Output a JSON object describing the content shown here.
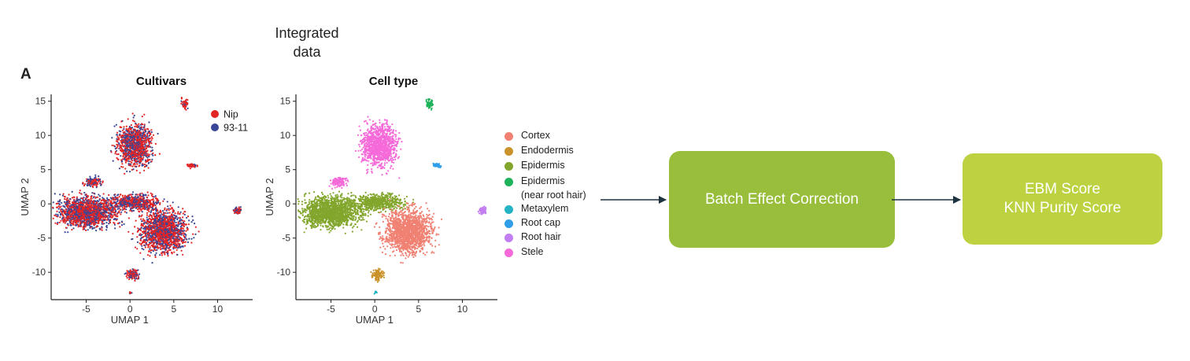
{
  "header": {
    "top_label_line1": "Integrated",
    "top_label_line2": "data",
    "panel_letter": "A"
  },
  "colors": {
    "box1": "#98be3b",
    "box2": "#bed140",
    "arrow": "#1d3340"
  },
  "chart_data": [
    {
      "type": "scatter",
      "title": "Cultivars",
      "xlabel": "UMAP 1",
      "ylabel": "UMAP 2",
      "xticks": [
        "-5",
        "0",
        "5",
        "10"
      ],
      "yticks": [
        "15",
        "10",
        "5",
        "0",
        "-5",
        "-10"
      ],
      "xlim": [
        -9,
        14
      ],
      "ylim": [
        -14,
        16
      ],
      "legend": [
        {
          "name": "Nip",
          "color": "#e32424"
        },
        {
          "name": "93-11",
          "color": "#3a4796"
        }
      ]
    },
    {
      "type": "scatter",
      "title": "Cell type",
      "xlabel": "UMAP 1",
      "ylabel": "UMAP 2",
      "xticks": [
        "-5",
        "0",
        "5",
        "10"
      ],
      "yticks": [
        "15",
        "10",
        "5",
        "0",
        "-5",
        "-10"
      ],
      "xlim": [
        -9,
        14
      ],
      "ylim": [
        -14,
        16
      ],
      "legend": [
        {
          "name": "Cortex",
          "color": "#f08072"
        },
        {
          "name": "Endodermis",
          "color": "#c9922a"
        },
        {
          "name": "Epidermis",
          "color": "#82a62c"
        },
        {
          "name": "Epidermis",
          "name2": "(near root hair)",
          "color": "#1eb35a"
        },
        {
          "name": "Metaxylem",
          "color": "#24b3c2"
        },
        {
          "name": "Root cap",
          "color": "#2f9de8"
        },
        {
          "name": "Root hair",
          "color": "#c27ef0"
        },
        {
          "name": "Stele",
          "color": "#f56ad8"
        }
      ]
    }
  ],
  "flow": {
    "step1": "Batch Effect Correction",
    "step2_line1": "EBM Score",
    "step2_line2": "KNN Purity Score"
  }
}
